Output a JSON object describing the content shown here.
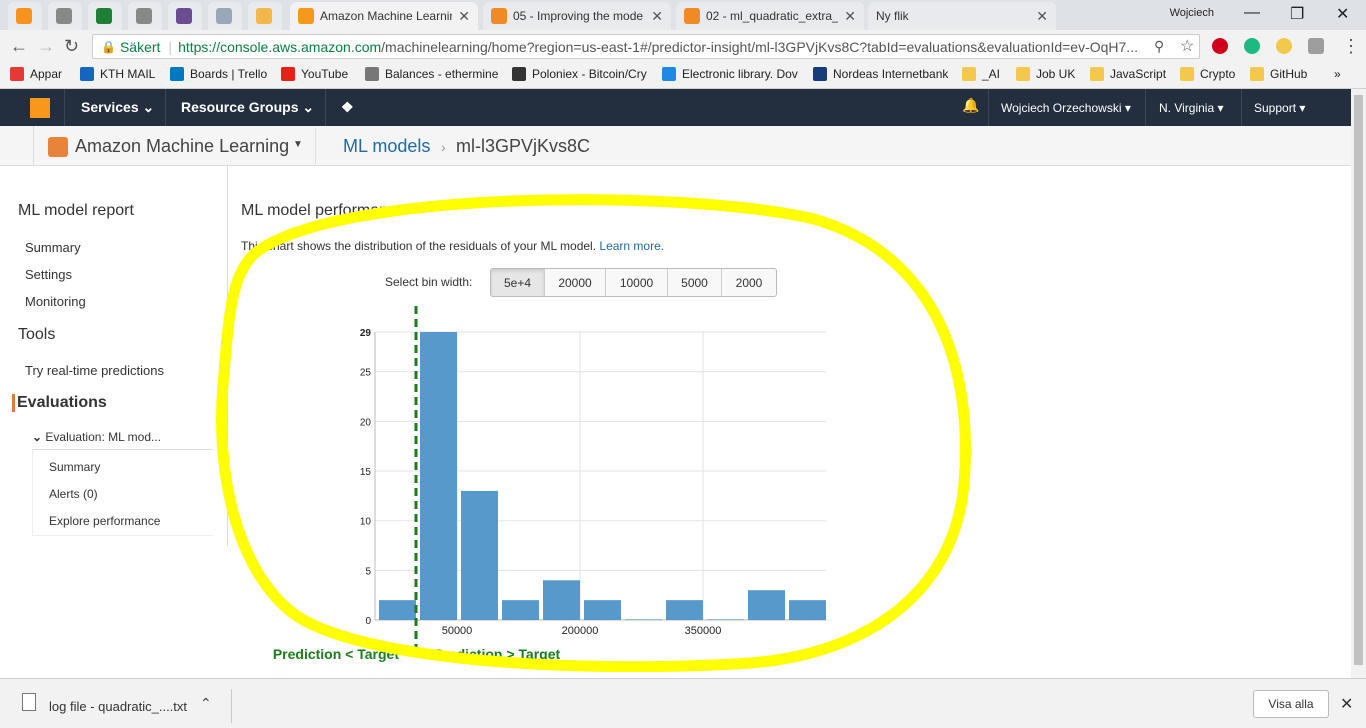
{
  "browser": {
    "tabs": [
      {
        "title": "",
        "color": "#f7931e"
      },
      {
        "title": "",
        "color": "#888888"
      },
      {
        "title": "",
        "color": "#1e7e34"
      },
      {
        "title": "",
        "color": "#888888"
      },
      {
        "title": "",
        "color": "#6a4c93"
      },
      {
        "title": "",
        "color": "#9aa7b8"
      },
      {
        "title": "",
        "color": "#f2b84b"
      },
      {
        "title": "Amazon Machine Learnin",
        "color": "#f7981d"
      },
      {
        "title": "05 - Improving the mode",
        "color": "#f08a24"
      },
      {
        "title": "02 - ml_quadratic_extra_",
        "color": "#f08a24"
      },
      {
        "title": "Ny flik",
        "color": ""
      }
    ],
    "user_label": "Wojciech",
    "secure_label": "Säkert",
    "url_host": "https://console.aws.amazon.com",
    "url_rest": "/machinelearning/home?region=us-east-1#/predictor-insight/ml-l3GPVjKvs8C?tabId=evaluations&evaluationId=ev-OqH7...",
    "bookmarks": [
      "Appar",
      "KTH MAIL",
      "Boards | Trello",
      "YouTube",
      "Balances - ethermine",
      "Poloniex - Bitcoin/Cry",
      "Electronic library. Dov",
      "Nordeas Internetbank",
      "_AI",
      "Job UK",
      "JavaScript",
      "Crypto",
      "GitHub"
    ],
    "bookmarks_more": "»"
  },
  "aws_header": {
    "services": "Services",
    "resource_groups": "Resource Groups",
    "user": "Wojciech Orzechowski",
    "region": "N. Virginia",
    "support": "Support"
  },
  "sub_header": {
    "service_name": "Amazon Machine Learning",
    "crumb_models": "ML models",
    "crumb_model_id": "ml-l3GPVjKvs8C"
  },
  "nav": {
    "report_heading": "ML model report",
    "summary": "Summary",
    "settings": "Settings",
    "monitoring": "Monitoring",
    "tools_heading": "Tools",
    "realtime": "Try real-time predictions",
    "evaluations": "Evaluations",
    "eval_item": "Evaluation: ML mod...",
    "eval_summary": "Summary",
    "eval_alerts": "Alerts (0)",
    "eval_explore": "Explore performance"
  },
  "main": {
    "title": "ML model performance",
    "description": "This chart shows the distribution of the residuals of your ML model.",
    "learn_more": "Learn more.",
    "bin_label": "Select bin width:",
    "bin_options": [
      "5e+4",
      "20000",
      "10000",
      "5000",
      "2000"
    ],
    "bin_selected": "5e+4",
    "label_left": "Prediction < Target",
    "label_right": "Prediction > Target"
  },
  "chart_data": {
    "type": "bar",
    "title": "",
    "xlabel": "",
    "ylabel": "",
    "bin_width": 50000,
    "bins": [
      {
        "start": -50000,
        "value": 2
      },
      {
        "start": 0,
        "value": 29
      },
      {
        "start": 50000,
        "value": 13
      },
      {
        "start": 100000,
        "value": 2
      },
      {
        "start": 150000,
        "value": 4
      },
      {
        "start": 200000,
        "value": 2
      },
      {
        "start": 250000,
        "value": 0
      },
      {
        "start": 300000,
        "value": 2
      },
      {
        "start": 350000,
        "value": 0
      },
      {
        "start": 400000,
        "value": 3
      },
      {
        "start": 450000,
        "value": 2
      }
    ],
    "y_ticks": [
      0,
      5,
      10,
      15,
      20,
      25,
      29
    ],
    "x_tick_labels": [
      "50000",
      "200000",
      "350000"
    ],
    "x_tick_values": [
      50000,
      200000,
      350000
    ],
    "ylim": [
      0,
      29
    ],
    "xlim": [
      -50000,
      500000
    ],
    "reference_line": 0,
    "bar_color": "#4f94c8",
    "reference_color": "#1a7d1a",
    "grid": true
  },
  "download_bar": {
    "file": "log file - quadratic_....txt",
    "show_all": "Visa alla"
  },
  "highlight_color": "#ffff00"
}
